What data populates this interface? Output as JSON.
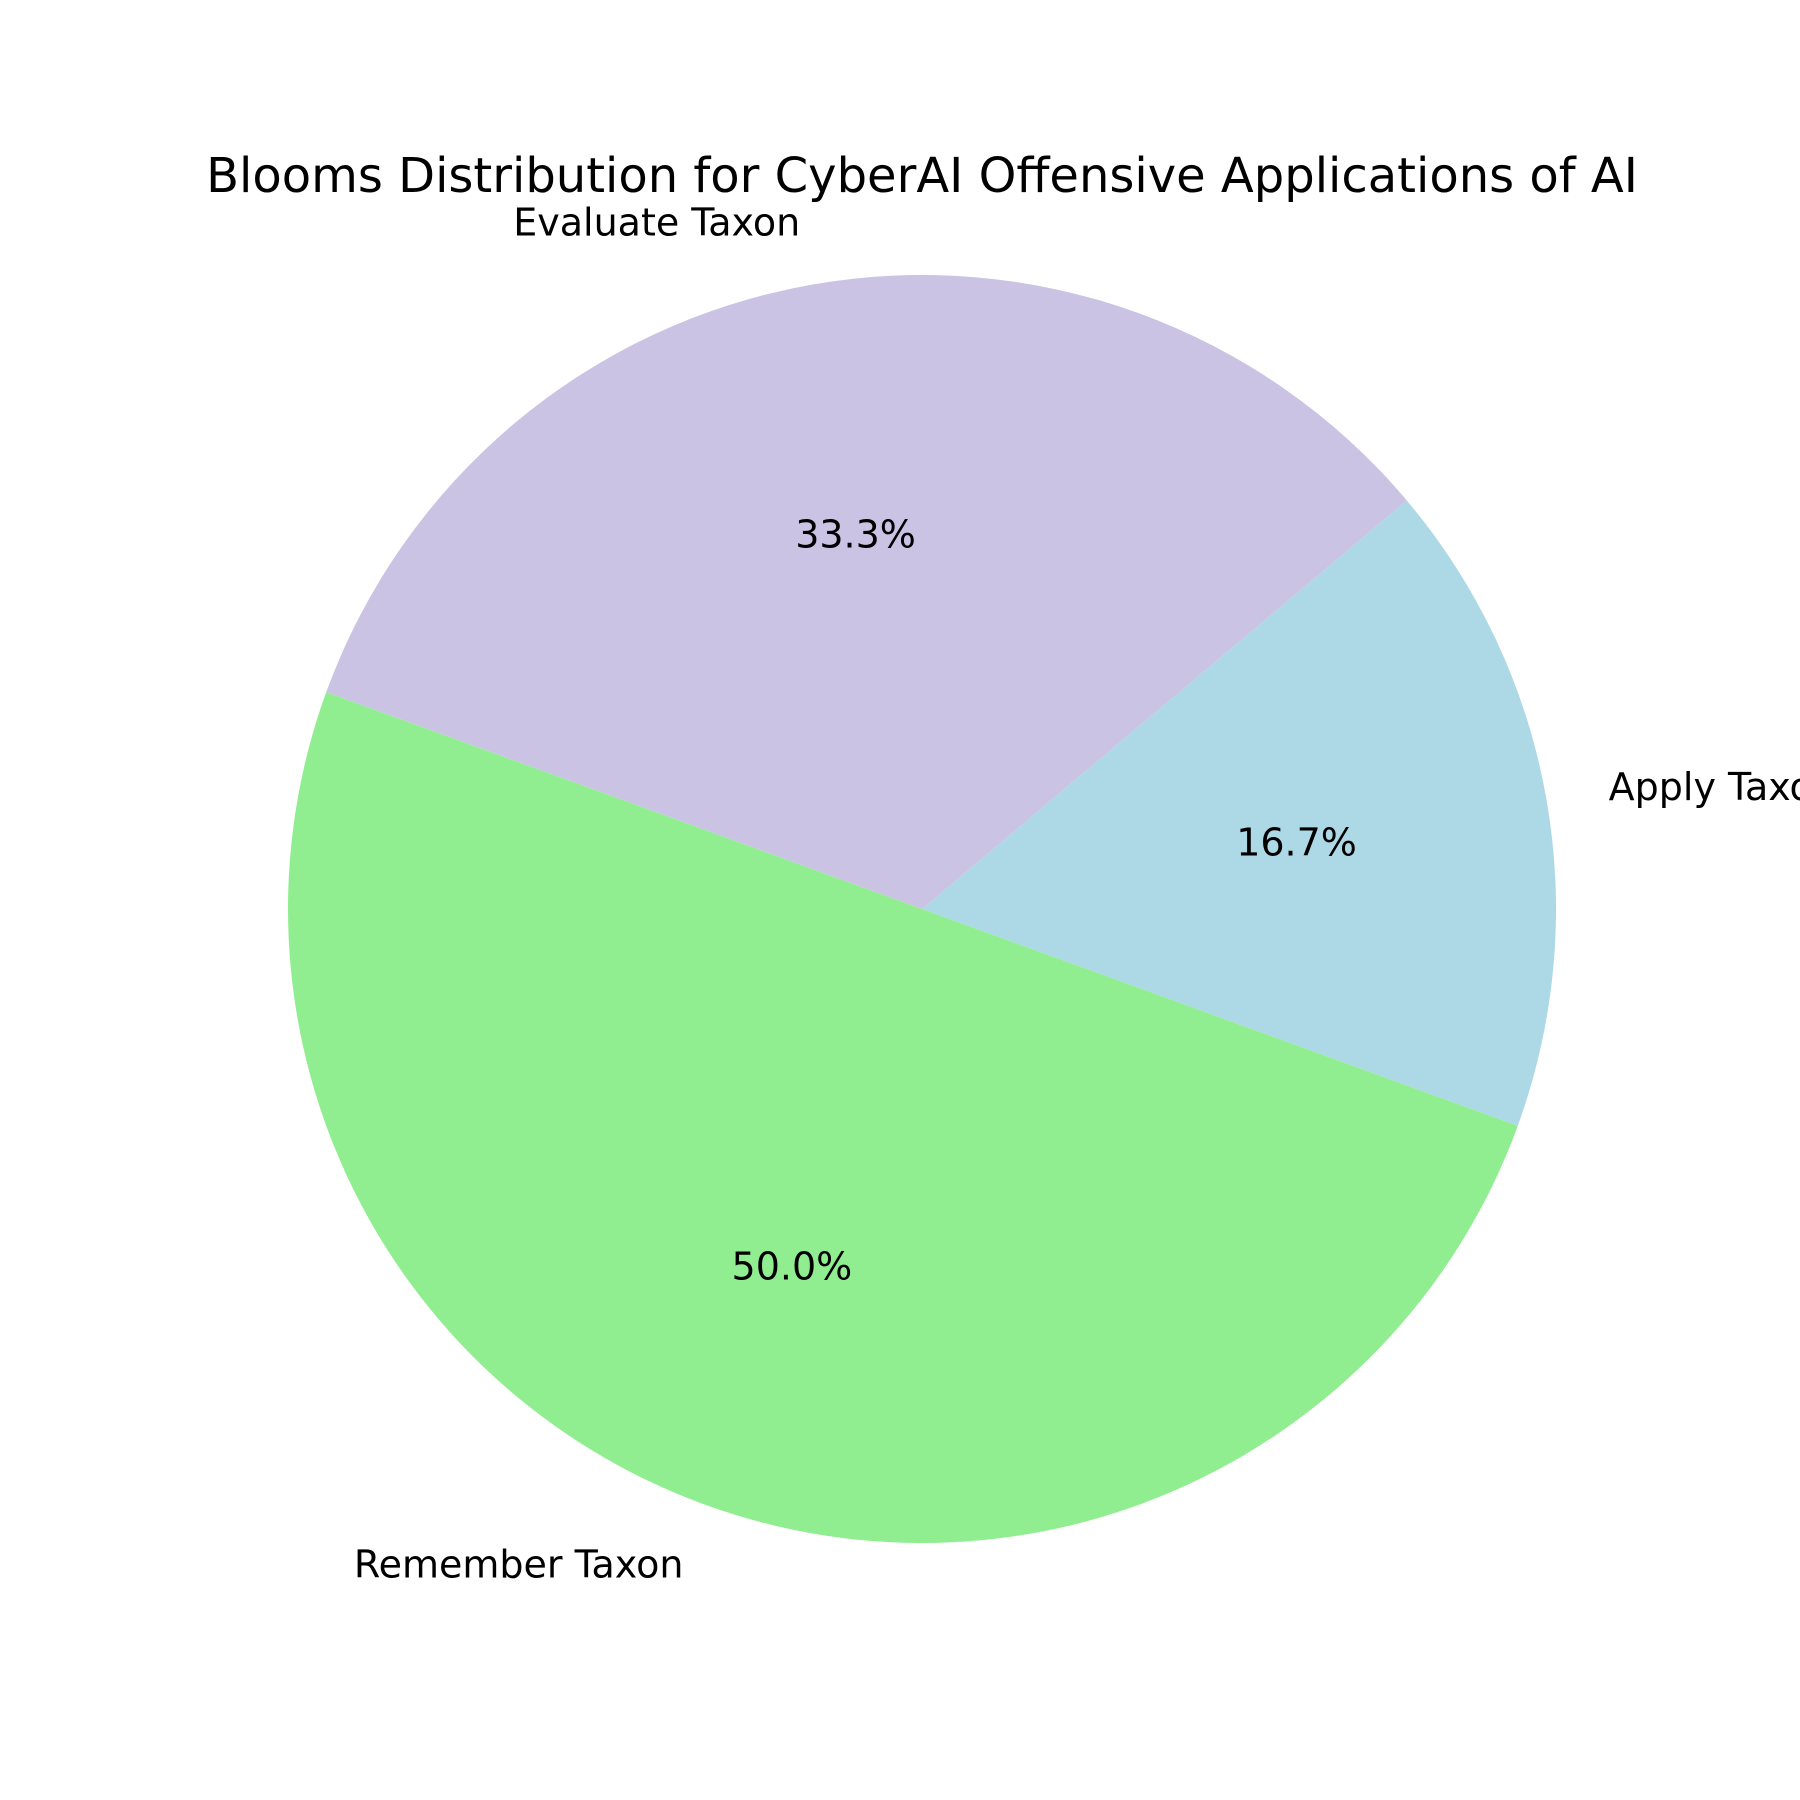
{
  "chart_data": {
    "type": "pie",
    "title": "Blooms Distribution for CyberAI Offensive Applications of AI",
    "slices": [
      {
        "label": "Apply Taxon",
        "value": 16.7,
        "pct_label": "16.7%",
        "color": "#add8e6"
      },
      {
        "label": "Evaluate Taxon",
        "value": 33.3,
        "pct_label": "33.3%",
        "color": "#cbc3e3"
      },
      {
        "label": "Remember Taxon",
        "value": 50.0,
        "pct_label": "50.0%",
        "color": "#90ee90"
      }
    ]
  }
}
